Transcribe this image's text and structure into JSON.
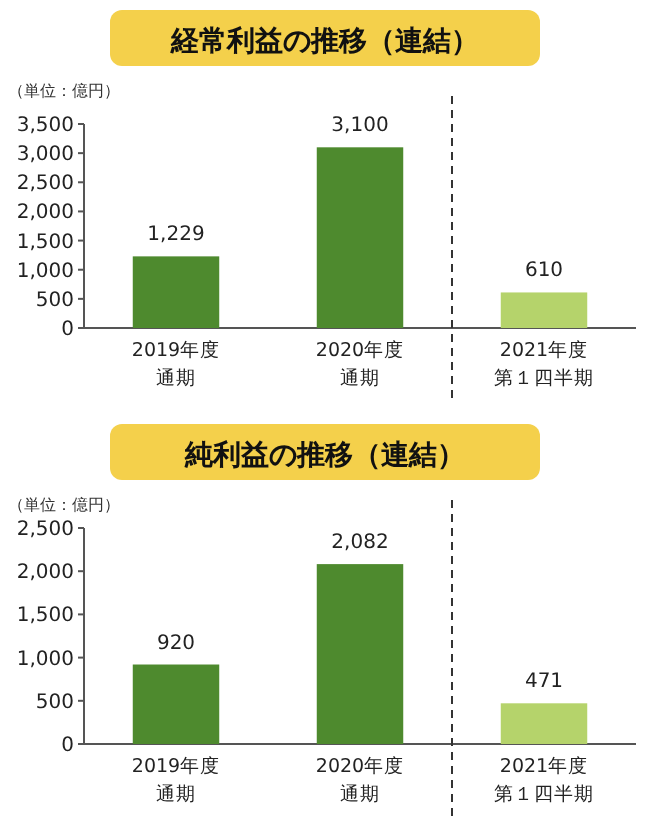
{
  "chart_data": [
    {
      "type": "bar",
      "title": "経常利益の推移（連結）",
      "annotations": [
        "（単位：億円）"
      ],
      "categories": [
        "2019年度通期",
        "2020年度通期",
        "2021年度第１四半期"
      ],
      "series": [
        {
          "colors": [
            "#4e8a2e",
            "#4e8a2e",
            "#b5d36b"
          ],
          "values": [
            1229,
            3100,
            610
          ],
          "value_labels": [
            "1,229",
            "3,100",
            "610"
          ]
        }
      ],
      "ylim": [
        0,
        3500
      ],
      "yticks": [
        0,
        {
          "value": 500,
          "label": "500"
        },
        {
          "value": 1000,
          "label": "1,000"
        },
        {
          "value": 1500,
          "label": "1,500"
        },
        {
          "value": 2000,
          "label": "2,000"
        },
        {
          "value": 2500,
          "label": "2,500"
        },
        {
          "value": 3000,
          "label": "3,000"
        },
        {
          "value": 3500,
          "label": "3,500"
        }
      ],
      "grid": false
    },
    {
      "type": "bar",
      "title": "純利益の推移（連結）",
      "annotations": [
        "（単位：億円）"
      ],
      "categories": [
        "2019年度通期",
        "2020年度通期",
        "2021年度第１四半期"
      ],
      "series": [
        {
          "colors": [
            "#4e8a2e",
            "#4e8a2e",
            "#b5d36b"
          ],
          "values": [
            920,
            2082,
            471
          ],
          "value_labels": [
            "920",
            "2,082",
            "471"
          ]
        }
      ],
      "ylim": [
        0,
        2500
      ],
      "yticks": [
        0,
        {
          "value": 500,
          "label": "500"
        },
        {
          "value": 1000,
          "label": "1,000"
        },
        {
          "value": 1500,
          "label": "1,500"
        },
        {
          "value": 2000,
          "label": "2,000"
        },
        {
          "value": 2500,
          "label": "2,500"
        }
      ],
      "grid": false
    }
  ]
}
